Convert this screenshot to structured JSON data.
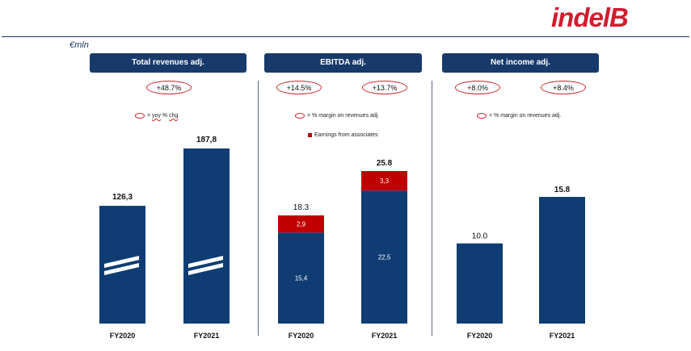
{
  "header": {
    "logo_text": "indelB",
    "currency_label": "€mln"
  },
  "colors": {
    "navy": "#0f3d73",
    "red": "#c00000",
    "oval_red": "#c8282d"
  },
  "panels": [
    {
      "title": "Total revenues adj.",
      "badges": [
        "+48.7%"
      ],
      "legend_yoy": "= yoy % chg",
      "legend_yoy_prefix": "= ",
      "legend_yoy_word1": "yoy",
      "legend_yoy_rest": " % ",
      "legend_yoy_word2": "chg"
    },
    {
      "title": "EBITDA adj.",
      "badges": [
        "+14.5%",
        "+13.7%"
      ],
      "legend_margin": "= % margin on revenues adj.",
      "legend_assoc": "Earnings from associates"
    },
    {
      "title": "Net income adj.",
      "badges": [
        "+8.0%",
        "+8.4%"
      ],
      "legend_margin": "= % margin on revenues adj."
    }
  ],
  "chart_data": [
    {
      "type": "bar",
      "title": "Total revenues adj.",
      "categories": [
        "FY2020",
        "FY2021"
      ],
      "values": [
        126.3,
        187.8
      ],
      "value_labels": [
        "126,3",
        "187,8"
      ],
      "axis_break": true
    },
    {
      "type": "bar",
      "title": "EBITDA adj.",
      "stacked": true,
      "categories": [
        "FY2020",
        "FY2021"
      ],
      "series": [
        {
          "values": [
            15.4,
            22.5
          ],
          "labels": [
            "15,4",
            "22,5"
          ],
          "color": "#0f3d73"
        },
        {
          "name": "Earnings from associates",
          "values": [
            2.9,
            3.3
          ],
          "labels": [
            "2,9",
            "3,3"
          ],
          "color": "#c00000"
        }
      ],
      "totals": [
        18.3,
        25.8
      ],
      "total_labels": [
        "18.3",
        "25.8"
      ]
    },
    {
      "type": "bar",
      "title": "Net income adj.",
      "categories": [
        "FY2020",
        "FY2021"
      ],
      "values": [
        10.0,
        15.8
      ],
      "value_labels": [
        "10.0",
        "15.8"
      ]
    }
  ]
}
